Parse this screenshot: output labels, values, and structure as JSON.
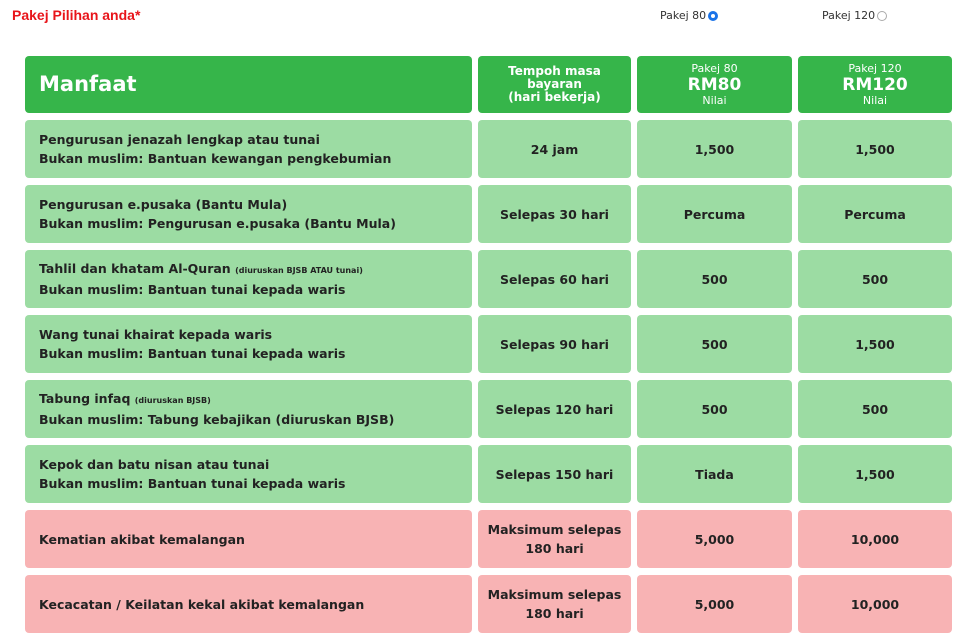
{
  "header": {
    "title": "Pakej Pilihan anda*",
    "options": [
      {
        "label": "Pakej 80",
        "selected": true
      },
      {
        "label": "Pakej 120",
        "selected": false
      }
    ]
  },
  "table": {
    "columns": {
      "benefit": "Manfaat",
      "period": [
        "Tempoh masa",
        "bayaran",
        "(hari bekerja)"
      ],
      "packages": [
        {
          "top": "Pakej 80",
          "price": "RM80",
          "sub": "Nilai"
        },
        {
          "top": "Pakej 120",
          "price": "RM120",
          "sub": "Nilai"
        }
      ]
    },
    "rows": [
      {
        "benefit": "Pengurusan jenazah lengkap atau tunai",
        "non_muslim": "Bukan muslim: Bantuan kewangan pengkebumian",
        "period": "24 jam",
        "values": [
          "1,500",
          "1,500"
        ],
        "kind": "green"
      },
      {
        "benefit": "Pengurusan e.pusaka (Bantu Mula)",
        "non_muslim": "Bukan muslim: Pengurusan e.pusaka (Bantu Mula)",
        "period": "Selepas 30 hari",
        "values": [
          "Percuma",
          "Percuma"
        ],
        "kind": "green"
      },
      {
        "benefit": "Tahlil dan khatam Al-Quran",
        "note": "(diuruskan BJSB ATAU tunai)",
        "non_muslim": "Bukan muslim: Bantuan tunai kepada waris",
        "period": "Selepas 60 hari",
        "values": [
          "500",
          "500"
        ],
        "kind": "green"
      },
      {
        "benefit": "Wang tunai khairat kepada waris",
        "non_muslim": "Bukan muslim: Bantuan tunai kepada waris",
        "period": "Selepas 90 hari",
        "values": [
          "500",
          "1,500"
        ],
        "kind": "green"
      },
      {
        "benefit": "Tabung infaq",
        "note": "(diuruskan BJSB)",
        "non_muslim": "Bukan muslim: Tabung kebajikan (diuruskan BJSB)",
        "period": "Selepas 120 hari",
        "values": [
          "500",
          "500"
        ],
        "kind": "green"
      },
      {
        "benefit": "Kepok dan batu nisan atau tunai",
        "non_muslim": "Bukan muslim: Bantuan tunai kepada waris",
        "period": "Selepas 150 hari",
        "values": [
          "Tiada",
          "1,500"
        ],
        "kind": "green"
      },
      {
        "benefit": "Kematian akibat kemalangan",
        "period": [
          "Maksimum selepas",
          "180 hari"
        ],
        "values": [
          "5,000",
          "10,000"
        ],
        "kind": "pink"
      },
      {
        "benefit": "Kecacatan / Keilatan kekal akibat kemalangan",
        "period": [
          "Maksimum selepas",
          "180 hari"
        ],
        "values": [
          "5,000",
          "10,000"
        ],
        "kind": "pink"
      }
    ]
  }
}
